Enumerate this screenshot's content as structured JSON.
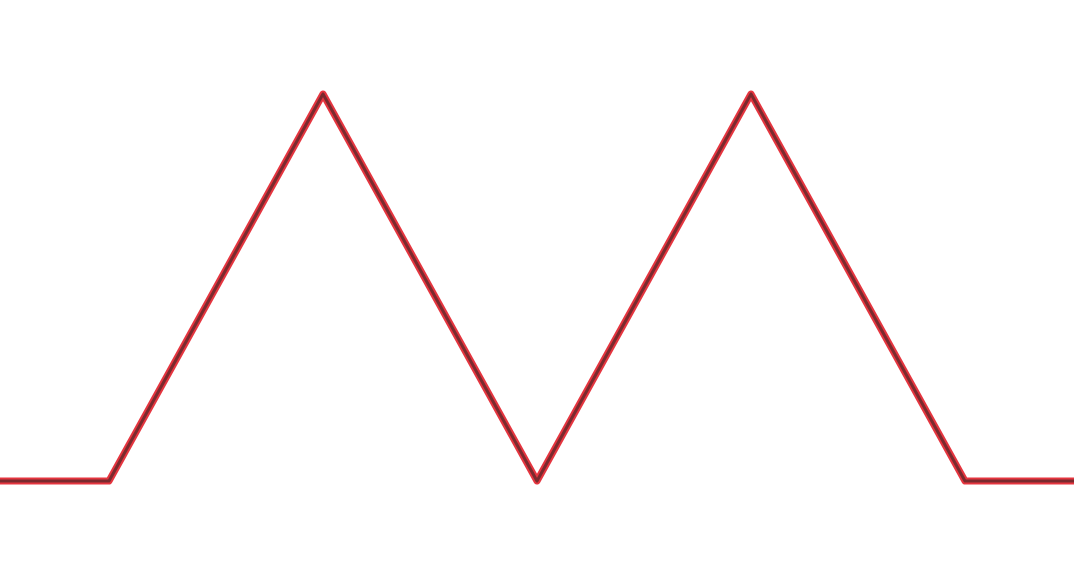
{
  "canvas": {
    "background_color": "#ffffff"
  },
  "wave": {
    "description_shape": "trapezoid-triangle-wave",
    "peak_count": 2,
    "valley_count": 1,
    "stroke_outer_color": "#e5353f",
    "stroke_inner_color": "#7a2a2e"
  }
}
